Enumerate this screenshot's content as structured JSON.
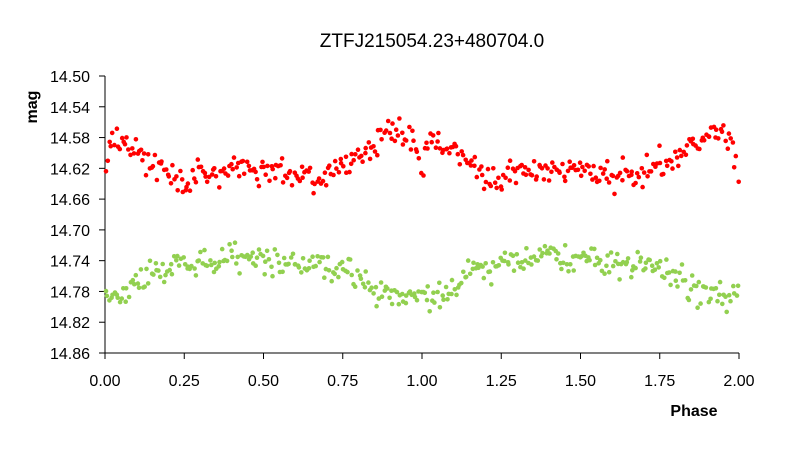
{
  "chart_data": {
    "type": "scatter",
    "title": "ZTFJ215054.23+480704.0",
    "xlabel": "Phase",
    "ylabel": "mag",
    "xlim": [
      0.0,
      2.0
    ],
    "ylim": [
      14.5,
      14.86
    ],
    "y_inverted": true,
    "grid": false,
    "x_ticks": [
      "0.00",
      "0.25",
      "0.50",
      "0.75",
      "1.00",
      "1.25",
      "1.50",
      "1.75",
      "2.00"
    ],
    "y_ticks": [
      "14.50",
      "14.54",
      "14.58",
      "14.62",
      "14.66",
      "14.70",
      "14.74",
      "14.78",
      "14.82",
      "14.86"
    ],
    "series": [
      {
        "color": "#ff0000",
        "x": [
          0.0,
          0.02,
          0.04,
          0.06,
          0.08,
          0.1,
          0.12,
          0.14,
          0.16,
          0.18,
          0.2,
          0.22,
          0.24,
          0.26,
          0.28,
          0.3,
          0.32,
          0.34,
          0.36,
          0.38,
          0.4,
          0.42,
          0.44,
          0.46,
          0.48,
          0.5,
          0.52,
          0.54,
          0.56,
          0.58,
          0.6,
          0.62,
          0.64,
          0.66,
          0.68,
          0.7,
          0.72,
          0.74,
          0.76,
          0.78,
          0.8,
          0.82,
          0.84,
          0.86,
          0.88,
          0.9,
          0.92,
          0.94,
          0.96,
          0.98
        ],
        "y": [
          14.622,
          14.575,
          14.585,
          14.59,
          14.6,
          14.585,
          14.605,
          14.612,
          14.618,
          14.625,
          14.628,
          14.632,
          14.638,
          14.635,
          14.63,
          14.628,
          14.625,
          14.622,
          14.624,
          14.626,
          14.628,
          14.625,
          14.62,
          14.622,
          14.624,
          14.622,
          14.62,
          14.624,
          14.626,
          14.628,
          14.63,
          14.628,
          14.624,
          14.632,
          14.634,
          14.628,
          14.622,
          14.615,
          14.612,
          14.608,
          14.612,
          14.605,
          14.598,
          14.59,
          14.582,
          14.578,
          14.572,
          14.57,
          14.585,
          14.598
        ]
      },
      {
        "color": "#92d050",
        "x": [
          0.0,
          0.02,
          0.04,
          0.06,
          0.08,
          0.1,
          0.12,
          0.14,
          0.16,
          0.18,
          0.2,
          0.22,
          0.24,
          0.26,
          0.28,
          0.3,
          0.32,
          0.34,
          0.36,
          0.38,
          0.4,
          0.42,
          0.44,
          0.46,
          0.48,
          0.5,
          0.52,
          0.54,
          0.56,
          0.58,
          0.6,
          0.62,
          0.64,
          0.66,
          0.68,
          0.7,
          0.72,
          0.74,
          0.76,
          0.78,
          0.8,
          0.82,
          0.84,
          0.86,
          0.88,
          0.9,
          0.92,
          0.94,
          0.96,
          0.98
        ],
        "y": [
          14.778,
          14.782,
          14.788,
          14.78,
          14.778,
          14.772,
          14.768,
          14.76,
          14.756,
          14.752,
          14.75,
          14.748,
          14.746,
          14.744,
          14.742,
          14.74,
          14.742,
          14.74,
          14.738,
          14.736,
          14.734,
          14.736,
          14.738,
          14.736,
          14.738,
          14.74,
          14.742,
          14.74,
          14.742,
          14.744,
          14.742,
          14.744,
          14.746,
          14.744,
          14.742,
          14.744,
          14.746,
          14.748,
          14.75,
          14.752,
          14.758,
          14.766,
          14.772,
          14.778,
          14.78,
          14.782,
          14.784,
          14.786,
          14.784,
          14.788
        ]
      }
    ]
  }
}
